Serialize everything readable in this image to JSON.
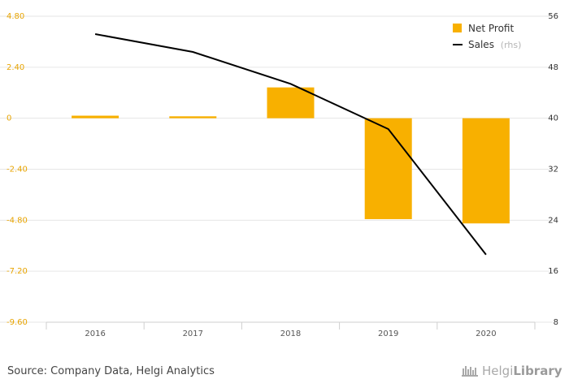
{
  "chart_data": {
    "type": "bar+line",
    "categories": [
      "2016",
      "2017",
      "2018",
      "2019",
      "2020"
    ],
    "series": [
      {
        "name": "Net Profit",
        "type": "bar",
        "axis": "left",
        "color": "#f8b000",
        "values": [
          0.12,
          0.09,
          1.45,
          -4.75,
          -4.95
        ]
      },
      {
        "name": "Sales",
        "type": "line",
        "axis": "right",
        "color": "#000000",
        "values": [
          53.2,
          50.4,
          45.4,
          38.3,
          18.6
        ]
      }
    ],
    "left_axis": {
      "ticks": [
        "4.80",
        "2.40",
        "0",
        "-2.40",
        "-4.80",
        "-7.20",
        "-9.60"
      ],
      "ylim": [
        -9.6,
        4.8
      ]
    },
    "right_axis": {
      "ticks": [
        "56",
        "48",
        "40",
        "32",
        "24",
        "16",
        "8"
      ],
      "ylim": [
        8,
        56
      ]
    },
    "grid": true,
    "legend": {
      "position": "top-right",
      "items": [
        {
          "label": "Net Profit"
        },
        {
          "label": "Sales",
          "suffix": "(rhs)"
        }
      ]
    }
  },
  "footer": {
    "source": "Source: Company Data, Helgi Analytics",
    "logo_light": "Helgi",
    "logo_bold": "Library"
  }
}
